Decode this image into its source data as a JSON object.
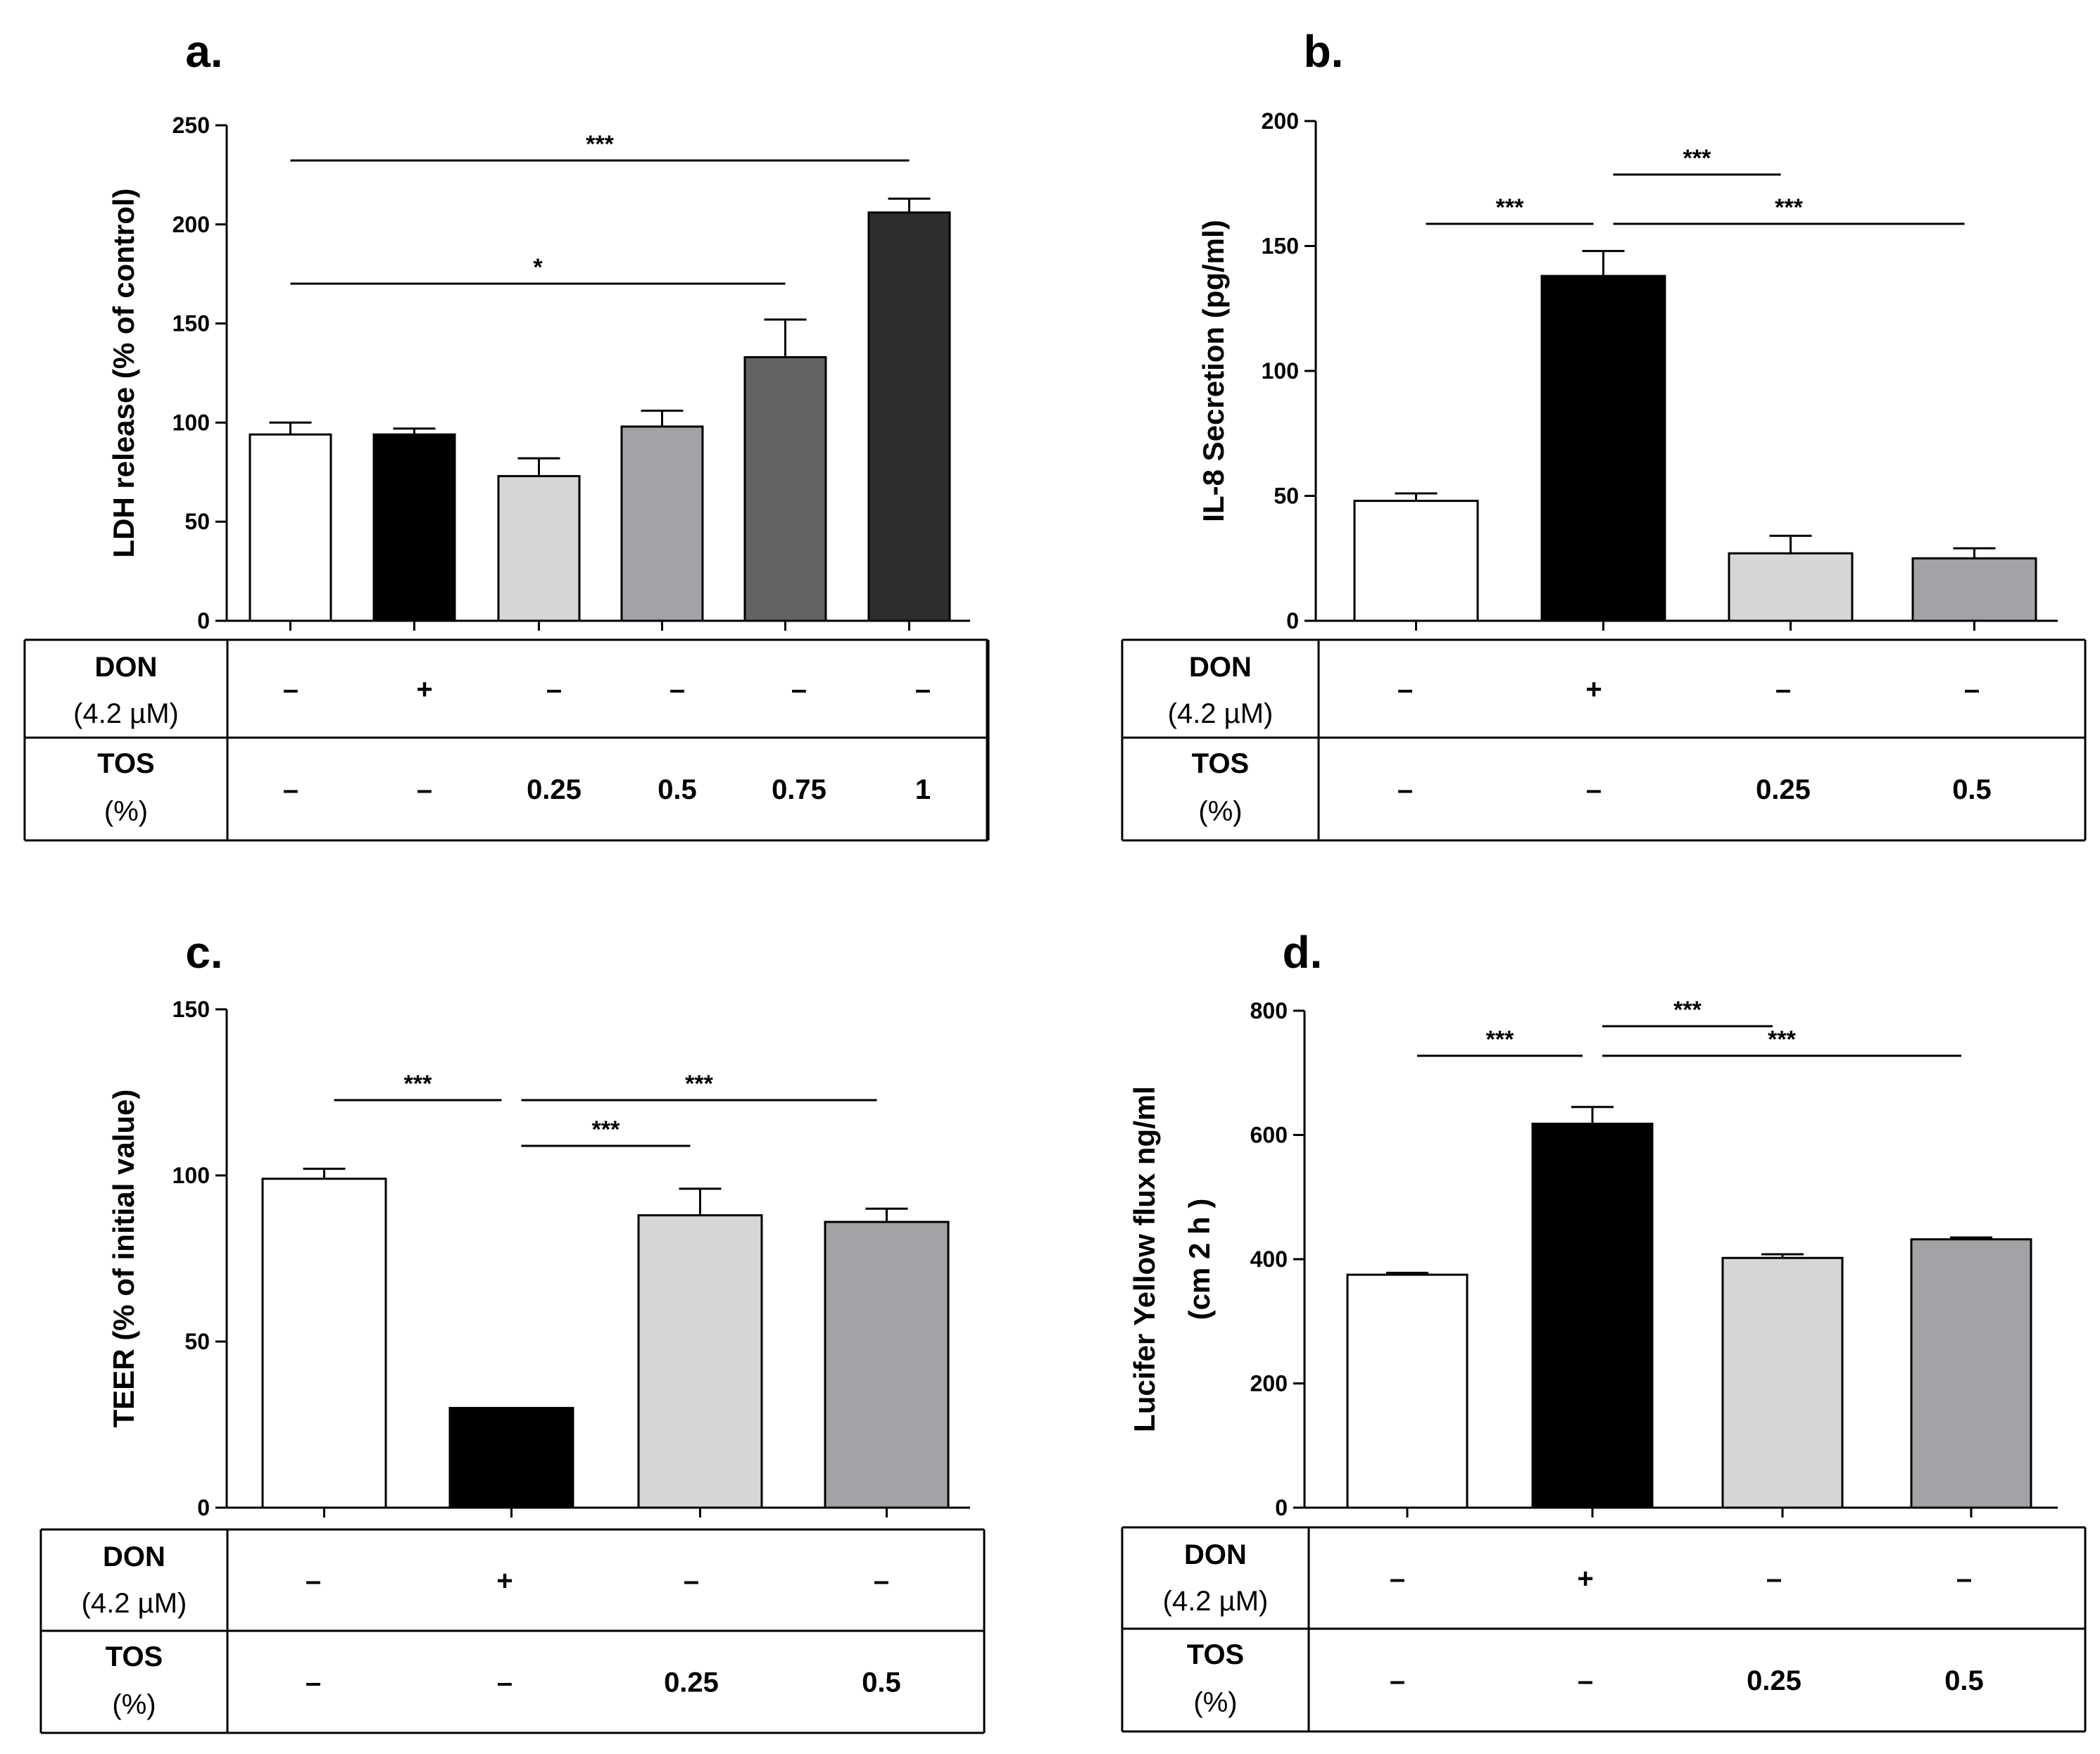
{
  "chart_data": [
    {
      "panel": "a.",
      "type": "bar",
      "ylabel": "LDH release (% of control)",
      "ylim": [
        0,
        250
      ],
      "yticks": [
        0,
        50,
        100,
        150,
        200,
        250
      ],
      "values": [
        94,
        94,
        73,
        98,
        133,
        206
      ],
      "errors": [
        6,
        3,
        9,
        8,
        19,
        7
      ],
      "colors": [
        "#ffffff",
        "#000000",
        "#d6d6d6",
        "#a3a3a7",
        "#636363",
        "#2e2e2e"
      ],
      "significance": [
        {
          "from": 0,
          "to": 5,
          "label": "***"
        },
        {
          "from": 0,
          "to": 4,
          "label": "*"
        }
      ],
      "table": {
        "row1_head": "DON",
        "row1_sub": "(4.2 µM)",
        "row1": [
          "–",
          "+",
          "–",
          "–",
          "–",
          "–"
        ],
        "row2_head": "TOS",
        "row2_sub": "(%)",
        "row2": [
          "–",
          "–",
          "0.25",
          "0.5",
          "0.75",
          "1"
        ]
      }
    },
    {
      "panel": "b.",
      "type": "bar",
      "ylabel": "IL-8 Secretion (pg/ml)",
      "ylim": [
        0,
        200
      ],
      "yticks": [
        0,
        50,
        100,
        150,
        200
      ],
      "values": [
        48,
        138,
        27,
        25
      ],
      "errors": [
        3,
        10,
        7,
        4
      ],
      "colors": [
        "#ffffff",
        "#000000",
        "#d6d6d6",
        "#a3a3a7"
      ],
      "significance": [
        {
          "from": 0,
          "to": 1,
          "label": "***"
        },
        {
          "from": 1,
          "to": 2,
          "label": "***"
        },
        {
          "from": 1,
          "to": 3,
          "label": "***"
        }
      ],
      "table": {
        "row1_head": "DON",
        "row1_sub": "(4.2 µM)",
        "row1": [
          "–",
          "+",
          "–",
          "–"
        ],
        "row2_head": "TOS",
        "row2_sub": "(%)",
        "row2": [
          "–",
          "–",
          "0.25",
          "0.5"
        ]
      }
    },
    {
      "panel": "c.",
      "type": "bar",
      "ylabel": "TEER (% of initial value)",
      "ylim": [
        0,
        150
      ],
      "yticks": [
        0,
        50,
        100,
        150
      ],
      "values": [
        99,
        30,
        88,
        86
      ],
      "errors": [
        3,
        0,
        8,
        4
      ],
      "colors": [
        "#ffffff",
        "#000000",
        "#d6d6d6",
        "#a3a3a7"
      ],
      "significance": [
        {
          "from": 0,
          "to": 1,
          "label": "***"
        },
        {
          "from": 1,
          "to": 3,
          "label": "***"
        },
        {
          "from": 1,
          "to": 2,
          "label": "***"
        }
      ],
      "table": {
        "row1_head": "DON",
        "row1_sub": "(4.2 µM)",
        "row1": [
          "–",
          "+",
          "–",
          "–"
        ],
        "row2_head": "TOS",
        "row2_sub": "(%)",
        "row2": [
          "–",
          "–",
          "0.25",
          "0.5"
        ]
      }
    },
    {
      "panel": "d.",
      "type": "bar",
      "ylabel": "Lucifer Yellow flux ng/ml",
      "ylabel2": "(cm 2 h )",
      "ylim": [
        0,
        800
      ],
      "yticks": [
        0,
        200,
        400,
        600,
        800
      ],
      "values": [
        375,
        618,
        402,
        432
      ],
      "errors": [
        3,
        27,
        6,
        3
      ],
      "colors": [
        "#ffffff",
        "#000000",
        "#d6d6d6",
        "#a3a3a7"
      ],
      "significance": [
        {
          "from": 0,
          "to": 1,
          "label": "***"
        },
        {
          "from": 1,
          "to": 2,
          "label": "***"
        },
        {
          "from": 1,
          "to": 3,
          "label": "***"
        }
      ],
      "table": {
        "row1_head": "DON",
        "row1_sub": "(4.2 µM)",
        "row1": [
          "–",
          "+",
          "–",
          "–"
        ],
        "row2_head": "TOS",
        "row2_sub": "(%)",
        "row2": [
          "–",
          "–",
          "0.25",
          "0.5"
        ]
      }
    }
  ]
}
